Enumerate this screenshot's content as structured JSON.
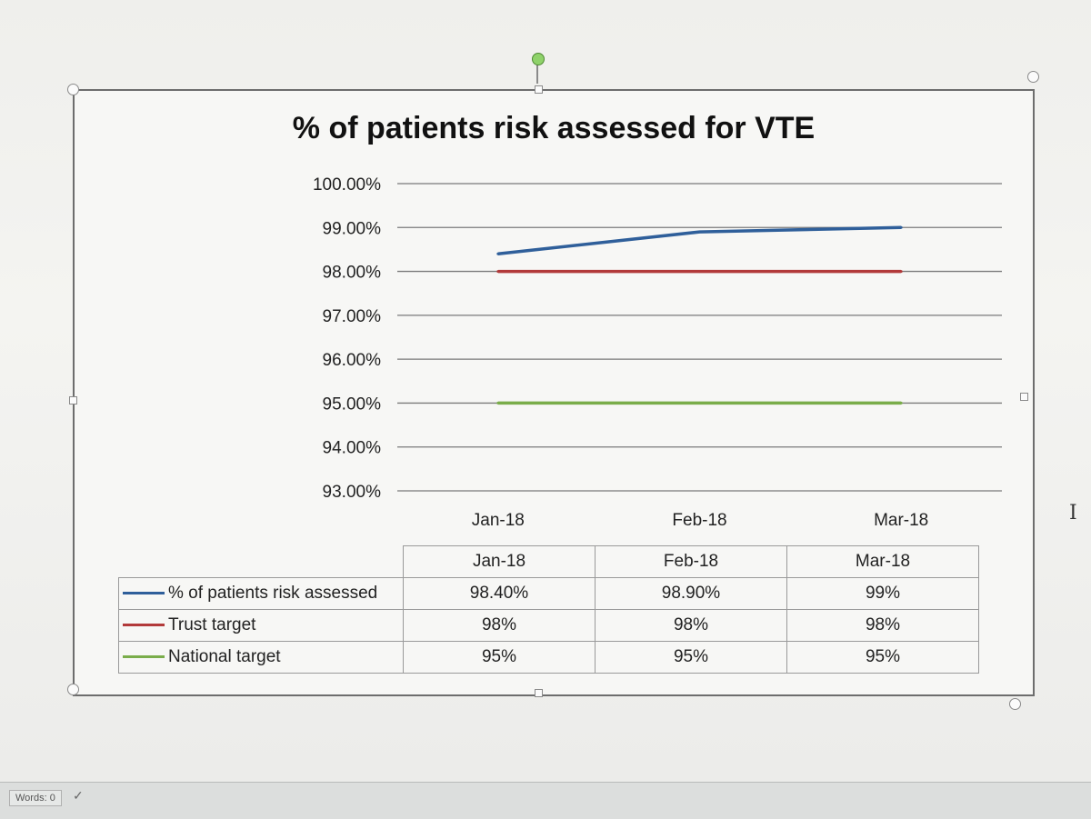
{
  "status_bar": {
    "word_count": "Words: 0"
  },
  "chart_data": {
    "type": "line",
    "title": "% of patients risk assessed for VTE",
    "categories": [
      "Jan-18",
      "Feb-18",
      "Mar-18"
    ],
    "ylim": [
      93,
      100
    ],
    "y_ticks": [
      "100.00%",
      "99.00%",
      "98.00%",
      "97.00%",
      "96.00%",
      "95.00%",
      "94.00%",
      "93.00%"
    ],
    "y_tick_values": [
      100,
      99,
      98,
      97,
      96,
      95,
      94,
      93
    ],
    "grid": true,
    "legend": "data-table",
    "series": [
      {
        "name": "% of patients risk assessed",
        "color": "#2f5f9a",
        "values": [
          98.4,
          98.9,
          99
        ],
        "table_values": [
          "98.40%",
          "98.90%",
          "99%"
        ]
      },
      {
        "name": "Trust target",
        "color": "#b23a3a",
        "values": [
          98,
          98,
          98
        ],
        "table_values": [
          "98%",
          "98%",
          "98%"
        ]
      },
      {
        "name": "National target",
        "color": "#7aad4a",
        "values": [
          95,
          95,
          95
        ],
        "table_values": [
          "95%",
          "95%",
          "95%"
        ]
      }
    ]
  }
}
